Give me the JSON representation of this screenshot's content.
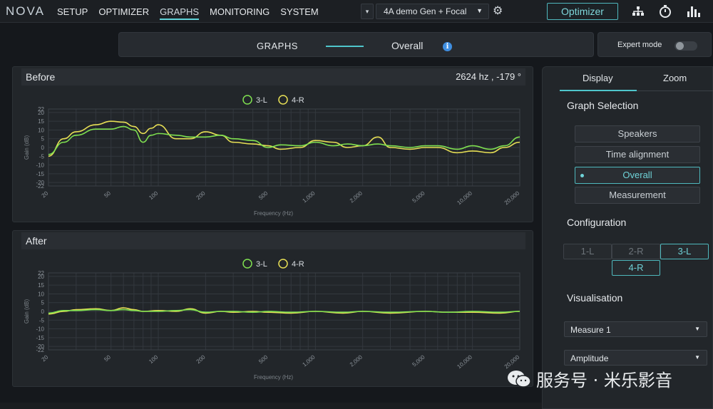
{
  "app": {
    "logo": "NOVA",
    "nav": [
      "SETUP",
      "OPTIMIZER",
      "GRAPHS",
      "MONITORING",
      "SYSTEM"
    ],
    "active_nav": "GRAPHS",
    "chevron": "▾",
    "preset": "4A demo Gen + Focal",
    "optimizer_button": "Optimizer"
  },
  "graphs_header": {
    "title": "GRAPHS",
    "view": "Overall",
    "info": "i"
  },
  "expert_mode": {
    "label": "Expert mode",
    "enabled": false
  },
  "before": {
    "title": "Before",
    "readout": "2624 hz , -179 °"
  },
  "after": {
    "title": "After"
  },
  "sidebar": {
    "tabs": [
      "Display",
      "Zoom"
    ],
    "active_tab": "Display",
    "graph_selection_title": "Graph Selection",
    "graph_options": [
      "Speakers",
      "Time alignment",
      "Overall",
      "Measurement"
    ],
    "selected_graph": "Overall",
    "configuration_title": "Configuration",
    "config_channels": [
      "1-L",
      "2-R",
      "3-L",
      "4-R"
    ],
    "active_channels": [
      "3-L",
      "4-R"
    ],
    "visualisation_title": "Visualisation",
    "measure_select": "Measure 1",
    "type_select": "Amplitude"
  },
  "watermark": {
    "text": "服务号 · 米乐影音"
  },
  "colors": {
    "accent": "#4fc6cc",
    "series_3L": "#7fe050",
    "series_4R": "#e7df55"
  },
  "chart_data": [
    {
      "type": "line",
      "title": "",
      "xlabel": "Frequency (Hz)",
      "ylabel": "Gain (dB)",
      "xscale": "log",
      "xlim": [
        20,
        20000
      ],
      "ylim": [
        -22,
        22
      ],
      "yticks": [
        22,
        20,
        15,
        10,
        5,
        0,
        -5,
        -10,
        -15,
        -20,
        -22
      ],
      "xticks": [
        "20",
        "50",
        "100",
        "200",
        "500",
        "1,000",
        "2,000",
        "5,000",
        "10,000",
        "20,000"
      ],
      "grid": true,
      "legend": "top-center",
      "series": [
        {
          "name": "3-L",
          "color": "#7fe050",
          "x": [
            20,
            25,
            30,
            40,
            50,
            60,
            70,
            80,
            90,
            100,
            130,
            160,
            200,
            250,
            300,
            400,
            500,
            600,
            800,
            1000,
            1300,
            1600,
            2000,
            2500,
            3000,
            4000,
            5000,
            6000,
            8000,
            10000,
            13000,
            16000,
            20000
          ],
          "y": [
            -4,
            3,
            7,
            10.5,
            10.5,
            12,
            10,
            3,
            7,
            8,
            7,
            6,
            6,
            7,
            5,
            4,
            0,
            1.5,
            1,
            3,
            1,
            2,
            1,
            2,
            1,
            0,
            1,
            1,
            -1,
            1,
            -1,
            1,
            6
          ]
        },
        {
          "name": "4-R",
          "color": "#e7df55",
          "x": [
            20,
            25,
            30,
            40,
            50,
            60,
            70,
            80,
            90,
            100,
            130,
            160,
            200,
            250,
            300,
            400,
            500,
            600,
            800,
            1000,
            1300,
            1600,
            2000,
            2500,
            3000,
            4000,
            5000,
            6000,
            8000,
            10000,
            13000,
            16000,
            20000
          ],
          "y": [
            -5,
            5,
            9,
            13,
            15,
            14.5,
            12,
            8,
            11,
            13,
            5,
            5,
            9,
            7,
            3,
            2,
            1,
            -1,
            0,
            4,
            3,
            0,
            1,
            6,
            0,
            -1,
            0,
            0,
            -3,
            -2,
            -3,
            0,
            3
          ]
        }
      ]
    },
    {
      "type": "line",
      "title": "",
      "xlabel": "Frequency (Hz)",
      "ylabel": "Gain (dB)",
      "xscale": "log",
      "xlim": [
        20,
        20000
      ],
      "ylim": [
        -22,
        22
      ],
      "yticks": [
        22,
        20,
        15,
        10,
        5,
        0,
        -5,
        -10,
        -15,
        -20,
        -22
      ],
      "xticks": [
        "20",
        "50",
        "100",
        "200",
        "500",
        "1,000",
        "2,000",
        "5,000",
        "10,000",
        "20,000"
      ],
      "grid": true,
      "legend": "top-center",
      "series": [
        {
          "name": "3-L",
          "color": "#7fe050",
          "x": [
            20,
            25,
            30,
            40,
            50,
            60,
            70,
            80,
            100,
            130,
            160,
            200,
            250,
            300,
            400,
            500,
            700,
            1000,
            1500,
            2000,
            3000,
            5000,
            7000,
            10000,
            15000,
            20000
          ],
          "y": [
            -1,
            0.5,
            0.5,
            1,
            0.5,
            1,
            0.5,
            0,
            0,
            0.5,
            1,
            -0.5,
            0,
            0,
            -0.5,
            0,
            -0.5,
            0,
            -0.5,
            0,
            -0.5,
            0,
            -0.5,
            0,
            -0.5,
            0
          ]
        },
        {
          "name": "4-R",
          "color": "#e7df55",
          "x": [
            20,
            25,
            30,
            40,
            50,
            60,
            70,
            80,
            100,
            130,
            160,
            200,
            250,
            300,
            400,
            500,
            700,
            1000,
            1500,
            2000,
            3000,
            5000,
            7000,
            10000,
            15000,
            20000
          ],
          "y": [
            -1.5,
            0,
            1,
            1.5,
            0.5,
            2,
            1,
            0,
            0.5,
            0,
            1.5,
            -1,
            0,
            -0.5,
            0,
            -0.5,
            -1,
            0,
            -1,
            0,
            -1,
            0,
            -0.5,
            -0.5,
            -1,
            0
          ]
        }
      ]
    }
  ]
}
